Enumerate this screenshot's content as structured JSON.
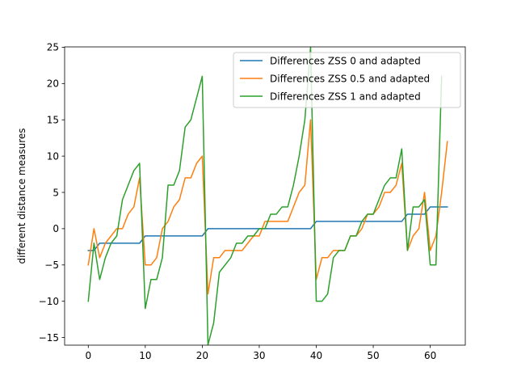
{
  "chart_data": {
    "type": "line",
    "title": "",
    "xlabel": "",
    "ylabel": "different distance measures",
    "xlim": [
      -4.15,
      66.15
    ],
    "ylim": [
      -16.05,
      25.05
    ],
    "x_ticks": [
      0,
      10,
      20,
      30,
      40,
      50,
      60
    ],
    "x_tick_labels": [
      "0",
      "10",
      "20",
      "30",
      "40",
      "50",
      "60"
    ],
    "y_ticks": [
      -15,
      -10,
      -5,
      0,
      5,
      10,
      15,
      20,
      25
    ],
    "y_tick_labels": [
      "−15",
      "−10",
      "−5",
      "0",
      "5",
      "10",
      "15",
      "20",
      "25"
    ],
    "grid": false,
    "legend_position": "top-right",
    "series": [
      {
        "name": "Differences ZSS 0 and adapted",
        "color": "#1f77b4",
        "x": [
          0,
          1,
          2,
          3,
          4,
          5,
          6,
          7,
          8,
          9,
          10,
          11,
          12,
          13,
          14,
          15,
          16,
          17,
          18,
          19,
          20,
          21,
          22,
          23,
          24,
          25,
          26,
          27,
          28,
          29,
          30,
          31,
          32,
          33,
          34,
          35,
          36,
          37,
          38,
          39,
          40,
          41,
          42,
          43,
          44,
          45,
          46,
          47,
          48,
          49,
          50,
          51,
          52,
          53,
          54,
          55,
          56,
          57,
          58,
          59,
          60,
          61,
          62,
          63
        ],
        "values": [
          -3,
          -3,
          -2,
          -2,
          -2,
          -2,
          -2,
          -2,
          -2,
          -2,
          -1,
          -1,
          -1,
          -1,
          -1,
          -1,
          -1,
          -1,
          -1,
          -1,
          -1,
          0,
          0,
          0,
          0,
          0,
          0,
          0,
          0,
          0,
          0,
          0,
          0,
          0,
          0,
          0,
          0,
          0,
          0,
          0,
          1,
          1,
          1,
          1,
          1,
          1,
          1,
          1,
          1,
          1,
          1,
          1,
          1,
          1,
          1,
          1,
          2,
          2,
          2,
          2,
          3,
          3,
          3,
          3
        ]
      },
      {
        "name": "Differences ZSS 0.5 and adapted",
        "color": "#ff7f0e",
        "x": [
          0,
          1,
          2,
          3,
          4,
          5,
          6,
          7,
          8,
          9,
          10,
          11,
          12,
          13,
          14,
          15,
          16,
          17,
          18,
          19,
          20,
          21,
          22,
          23,
          24,
          25,
          26,
          27,
          28,
          29,
          30,
          31,
          32,
          33,
          34,
          35,
          36,
          37,
          38,
          39,
          40,
          41,
          42,
          43,
          44,
          45,
          46,
          47,
          48,
          49,
          50,
          51,
          52,
          53,
          54,
          55,
          56,
          57,
          58,
          59,
          60,
          61,
          62,
          63
        ],
        "values": [
          -5,
          0,
          -4,
          -2,
          -1,
          0,
          0,
          2,
          3,
          7,
          -5,
          -5,
          -4,
          0,
          1,
          3,
          4,
          7,
          7,
          9,
          10,
          -9,
          -4,
          -4,
          -3,
          -3,
          -3,
          -3,
          -2,
          -1,
          -1,
          1,
          1,
          1,
          1,
          1,
          3,
          5,
          6,
          15,
          -7,
          -4,
          -4,
          -3,
          -3,
          -3,
          -1,
          -1,
          0,
          2,
          2,
          3,
          5,
          5,
          6,
          9,
          -3,
          -1,
          0,
          5,
          -3,
          -1,
          5,
          12
        ]
      },
      {
        "name": "Differences ZSS 1 and adapted",
        "color": "#2ca02c",
        "x": [
          0,
          1,
          2,
          3,
          4,
          5,
          6,
          7,
          8,
          9,
          10,
          11,
          12,
          13,
          14,
          15,
          16,
          17,
          18,
          19,
          20,
          21,
          22,
          23,
          24,
          25,
          26,
          27,
          28,
          29,
          30,
          31,
          32,
          33,
          34,
          35,
          36,
          37,
          38,
          39,
          40,
          41,
          42,
          43,
          44,
          45,
          46,
          47,
          48,
          49,
          50,
          51,
          52,
          53,
          54,
          55,
          56,
          57,
          58,
          59,
          60,
          61,
          62
        ],
        "values": [
          -10,
          -2,
          -7,
          -4,
          -2,
          -1,
          4,
          6,
          8,
          9,
          -11,
          -7,
          -7,
          -4,
          6,
          6,
          8,
          14,
          15,
          18,
          21,
          -16,
          -13,
          -6,
          -5,
          -4,
          -2,
          -2,
          -1,
          -1,
          0,
          0,
          2,
          2,
          3,
          3,
          6,
          10,
          15,
          25,
          -10,
          -10,
          -9,
          -4,
          -3,
          -3,
          -1,
          -1,
          1,
          2,
          2,
          4,
          6,
          7,
          7,
          11,
          -3,
          3,
          3,
          4,
          -5,
          -5,
          21
        ]
      }
    ]
  }
}
